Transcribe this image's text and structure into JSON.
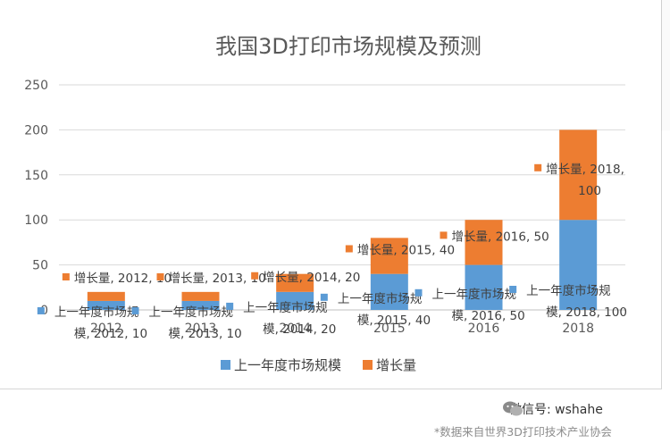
{
  "chart_data": {
    "type": "bar",
    "stacked": true,
    "title": "我国3D打印市场规模及预测",
    "categories": [
      "2012",
      "2013",
      "2014",
      "2015",
      "2016",
      "2018"
    ],
    "series": [
      {
        "name": "上一年度市场规模",
        "color": "#5b9bd5",
        "values": [
          10,
          10,
          20,
          40,
          50,
          100
        ]
      },
      {
        "name": "增长量",
        "color": "#ed7d31",
        "values": [
          10,
          10,
          20,
          40,
          50,
          100
        ]
      }
    ],
    "y_ticks": [
      "0",
      "50",
      "100",
      "150",
      "200",
      "250"
    ],
    "ylim": [
      0,
      250
    ],
    "grid": true,
    "legend_position": "bottom",
    "data_labels": {
      "base": [
        {
          "line1": "上一年度市场规",
          "line2": "模, 2012, 10"
        },
        {
          "line1": "上一年度市场规",
          "line2": "模, 2013, 10"
        },
        {
          "line1": "上一年度市场规",
          "line2": "模, 2014, 20"
        },
        {
          "line1": "上一年度市场规",
          "line2": "模, 2015, 40"
        },
        {
          "line1": "上一年度市场规",
          "line2": "模, 2016, 50"
        },
        {
          "line1": "上一年度市场规",
          "line2": "模, 2018, 100"
        }
      ],
      "increase": [
        {
          "line1": "增长量, 2012, 10",
          "line2": ""
        },
        {
          "line1": "增长量, 2013, 10",
          "line2": ""
        },
        {
          "line1": "增长量, 2014, 20",
          "line2": ""
        },
        {
          "line1": "增长量, 2015, 40",
          "line2": ""
        },
        {
          "line1": "增长量, 2016, 50",
          "line2": ""
        },
        {
          "line1": "增长量, 2018,",
          "line2": "100"
        }
      ]
    }
  },
  "watermark": {
    "text": "微信号: wshahe"
  },
  "source": {
    "text": "*数据来自世界3D打印技术产业协会"
  }
}
